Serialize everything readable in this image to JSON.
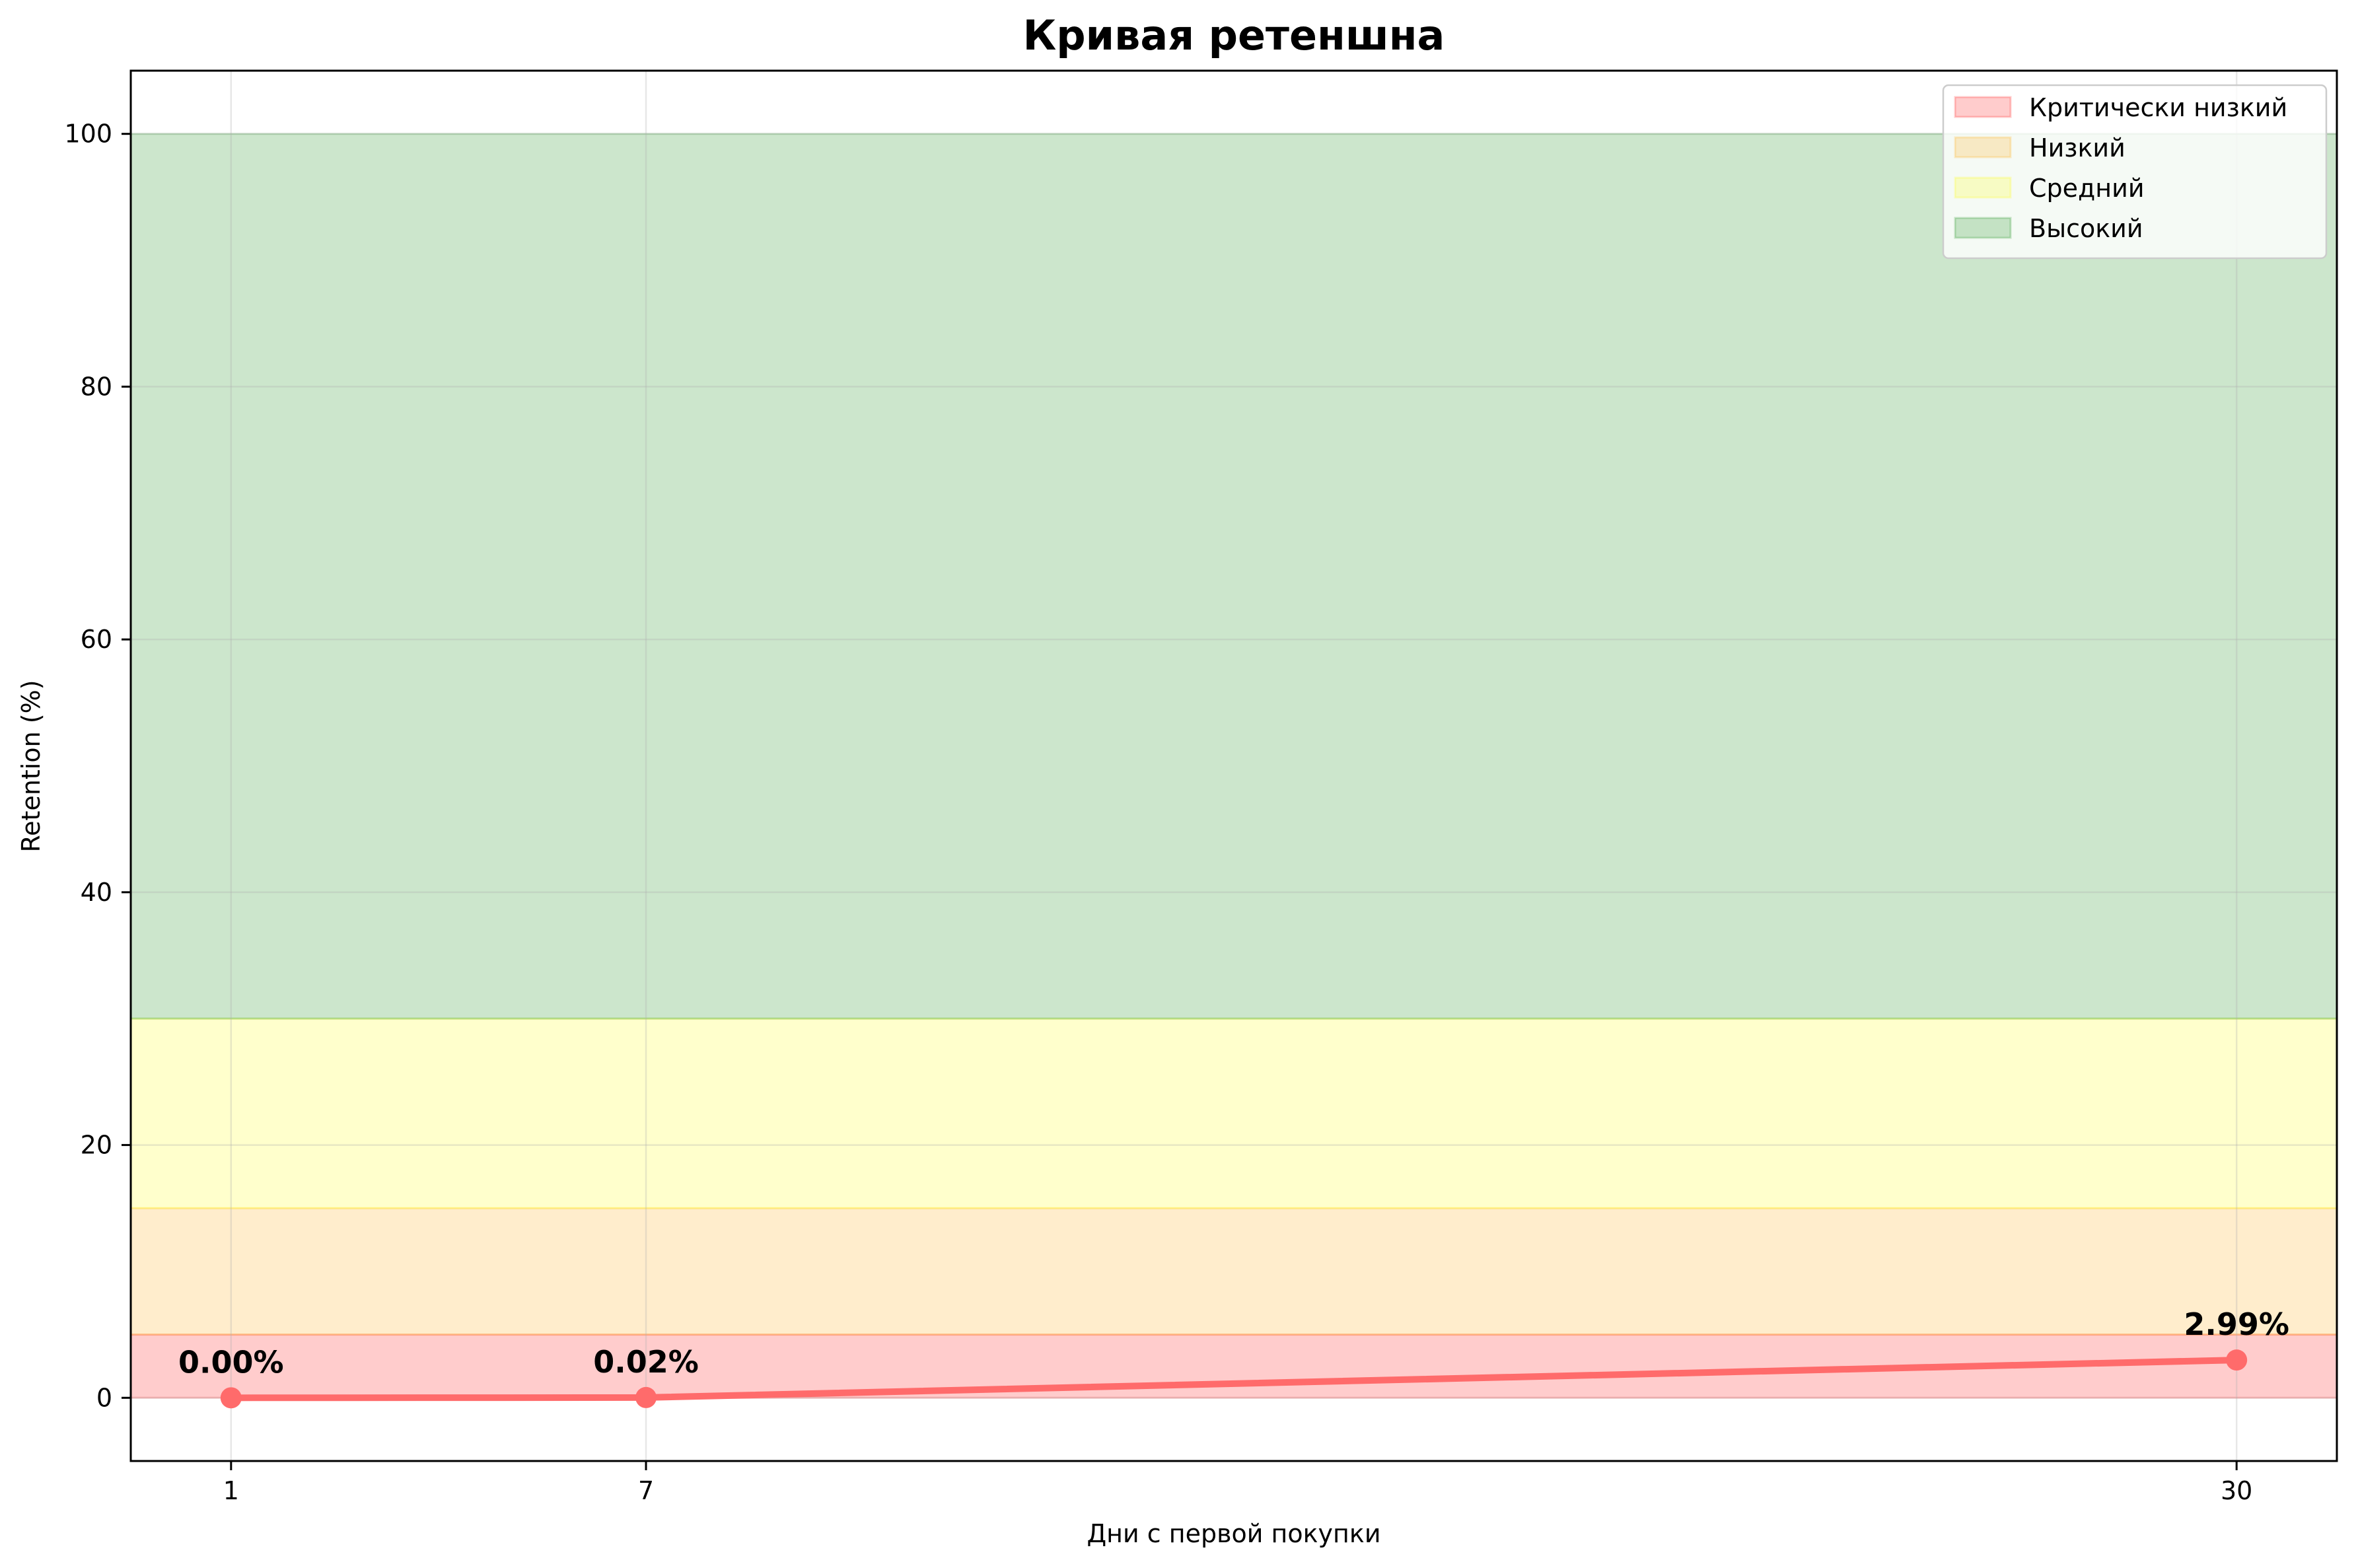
{
  "chart_data": {
    "type": "line",
    "title": "Кривая ретеншна",
    "xlabel": "Дни с первой покупки",
    "ylabel": "Retention (%)",
    "x": [
      1,
      7,
      30
    ],
    "x_tick_labels": [
      "1",
      "7",
      "30"
    ],
    "xlim": [
      -0.45,
      31.45
    ],
    "ylim": [
      -5,
      105
    ],
    "y_ticks": [
      0,
      20,
      40,
      60,
      80,
      100
    ],
    "y_tick_labels": [
      "0",
      "20",
      "40",
      "60",
      "80",
      "100"
    ],
    "grid": true,
    "series": [
      {
        "values": [
          0.0,
          0.02,
          2.99
        ],
        "data_labels": [
          "0.00%",
          "0.02%",
          "2.99%"
        ],
        "color": "#ff6b6b"
      }
    ],
    "bands": [
      {
        "name": "Критически низкий",
        "y0": 0,
        "y1": 5,
        "color": "#ff0000"
      },
      {
        "name": "Низкий",
        "y0": 5,
        "y1": 15,
        "color": "#ffa500"
      },
      {
        "name": "Средний",
        "y0": 15,
        "y1": 30,
        "color": "#ffff00"
      },
      {
        "name": "Высокий",
        "y0": 30,
        "y1": 100,
        "color": "#008000"
      }
    ],
    "legend_position": "top-right"
  }
}
